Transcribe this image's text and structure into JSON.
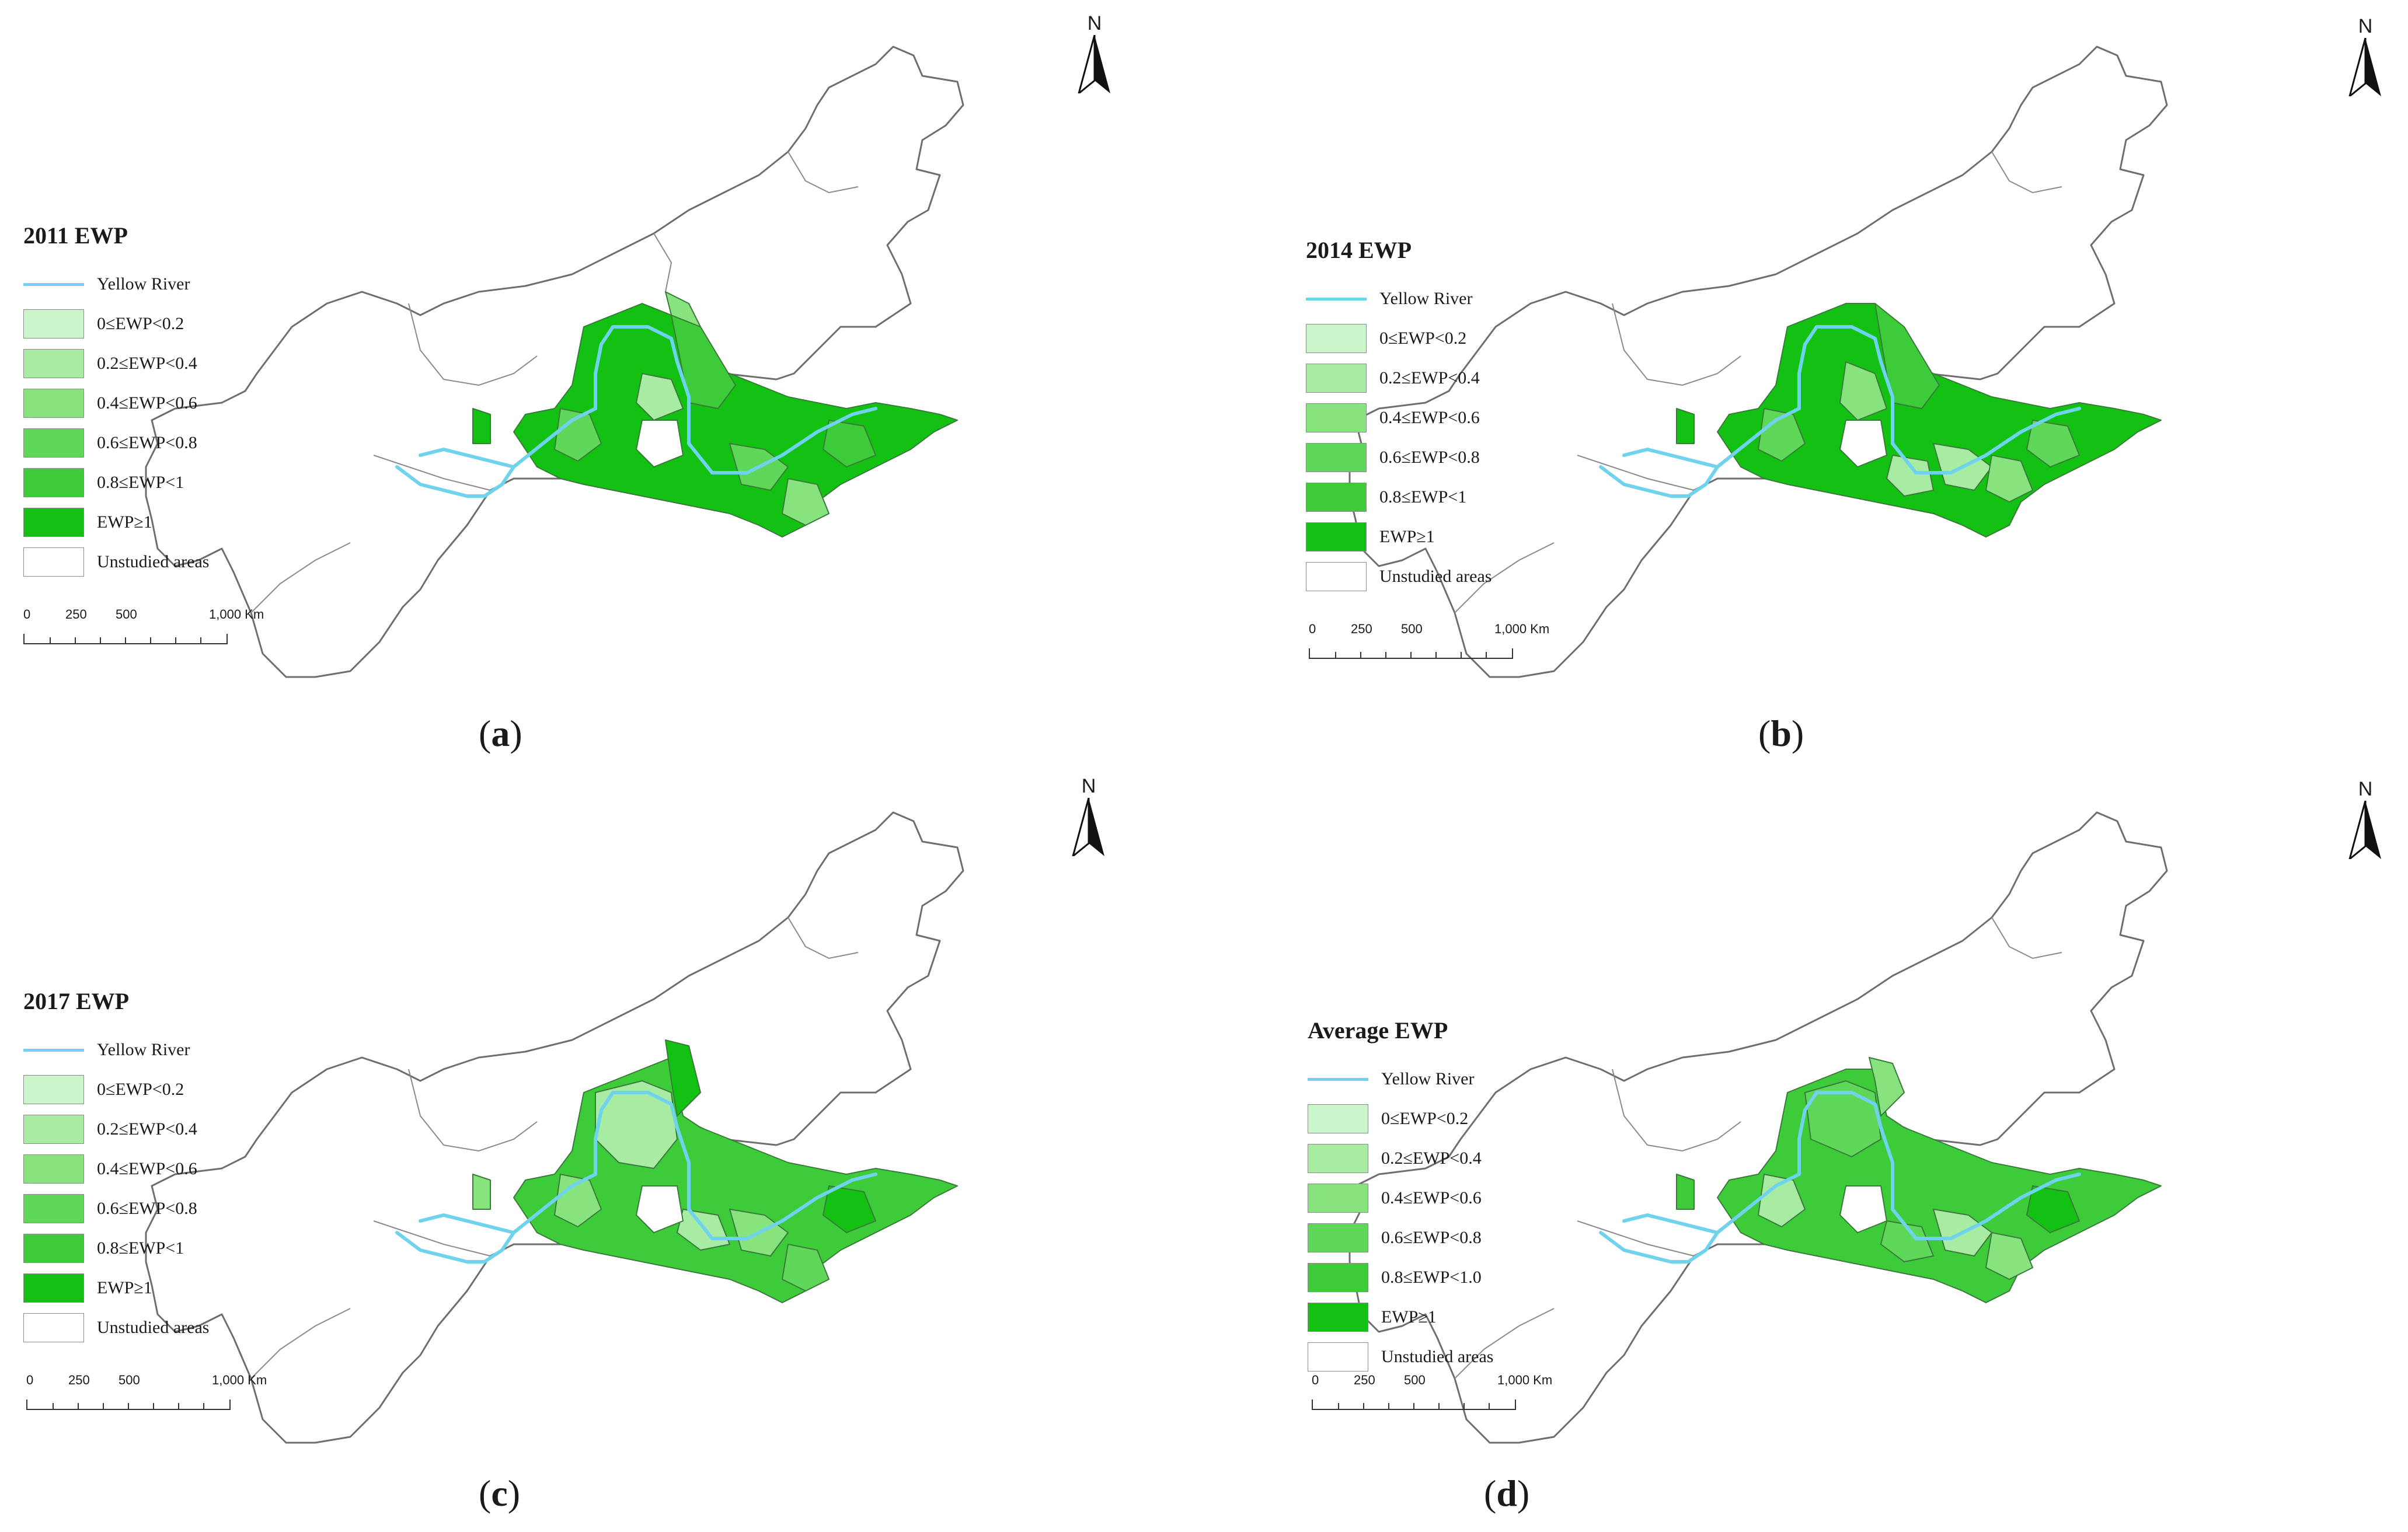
{
  "north_label": "N",
  "legend_entries": {
    "river": "Yellow River",
    "unstudied": "Unstudied areas"
  },
  "scale": {
    "labels": [
      "0",
      "250",
      "500",
      "1,000 Km"
    ]
  },
  "colors": {
    "river": "#6fd3ee",
    "class_0": "#cbf5cb",
    "class_1": "#a8eba2",
    "class_2": "#86e37e",
    "class_3": "#5fd85a",
    "class_4": "#3ecb3a",
    "class_5": "#13c113",
    "unstudied": "#ffffff",
    "boundary": "#6e6e6e"
  },
  "panels": [
    {
      "id": "a",
      "title": "2011 EWP",
      "label": "a",
      "classes": [
        "0≤EWP<0.2",
        "0.2≤EWP<0.4",
        "0.4≤EWP<0.6",
        "0.6≤EWP<0.8",
        "0.8≤EWP<1",
        "EWP≥1"
      ]
    },
    {
      "id": "b",
      "title": "2014 EWP",
      "label": "b",
      "classes": [
        "0≤EWP<0.2",
        "0.2≤EWP<0.4",
        "0.4≤EWP<0.6",
        "0.6≤EWP<0.8",
        "0.8≤EWP<1",
        "EWP≥1"
      ]
    },
    {
      "id": "c",
      "title": "2017 EWP",
      "label": "c",
      "classes": [
        "0≤EWP<0.2",
        "0.2≤EWP<0.4",
        "0.4≤EWP<0.6",
        "0.6≤EWP<0.8",
        "0.8≤EWP<1",
        "EWP≥1"
      ]
    },
    {
      "id": "d",
      "title": "Average EWP",
      "label": "d",
      "classes": [
        "0≤EWP<0.2",
        "0.2≤EWP<0.4",
        "0.4≤EWP<0.6",
        "0.6≤EWP<0.8",
        "0.8≤EWP<1.0",
        "EWP≥1"
      ]
    }
  ]
}
